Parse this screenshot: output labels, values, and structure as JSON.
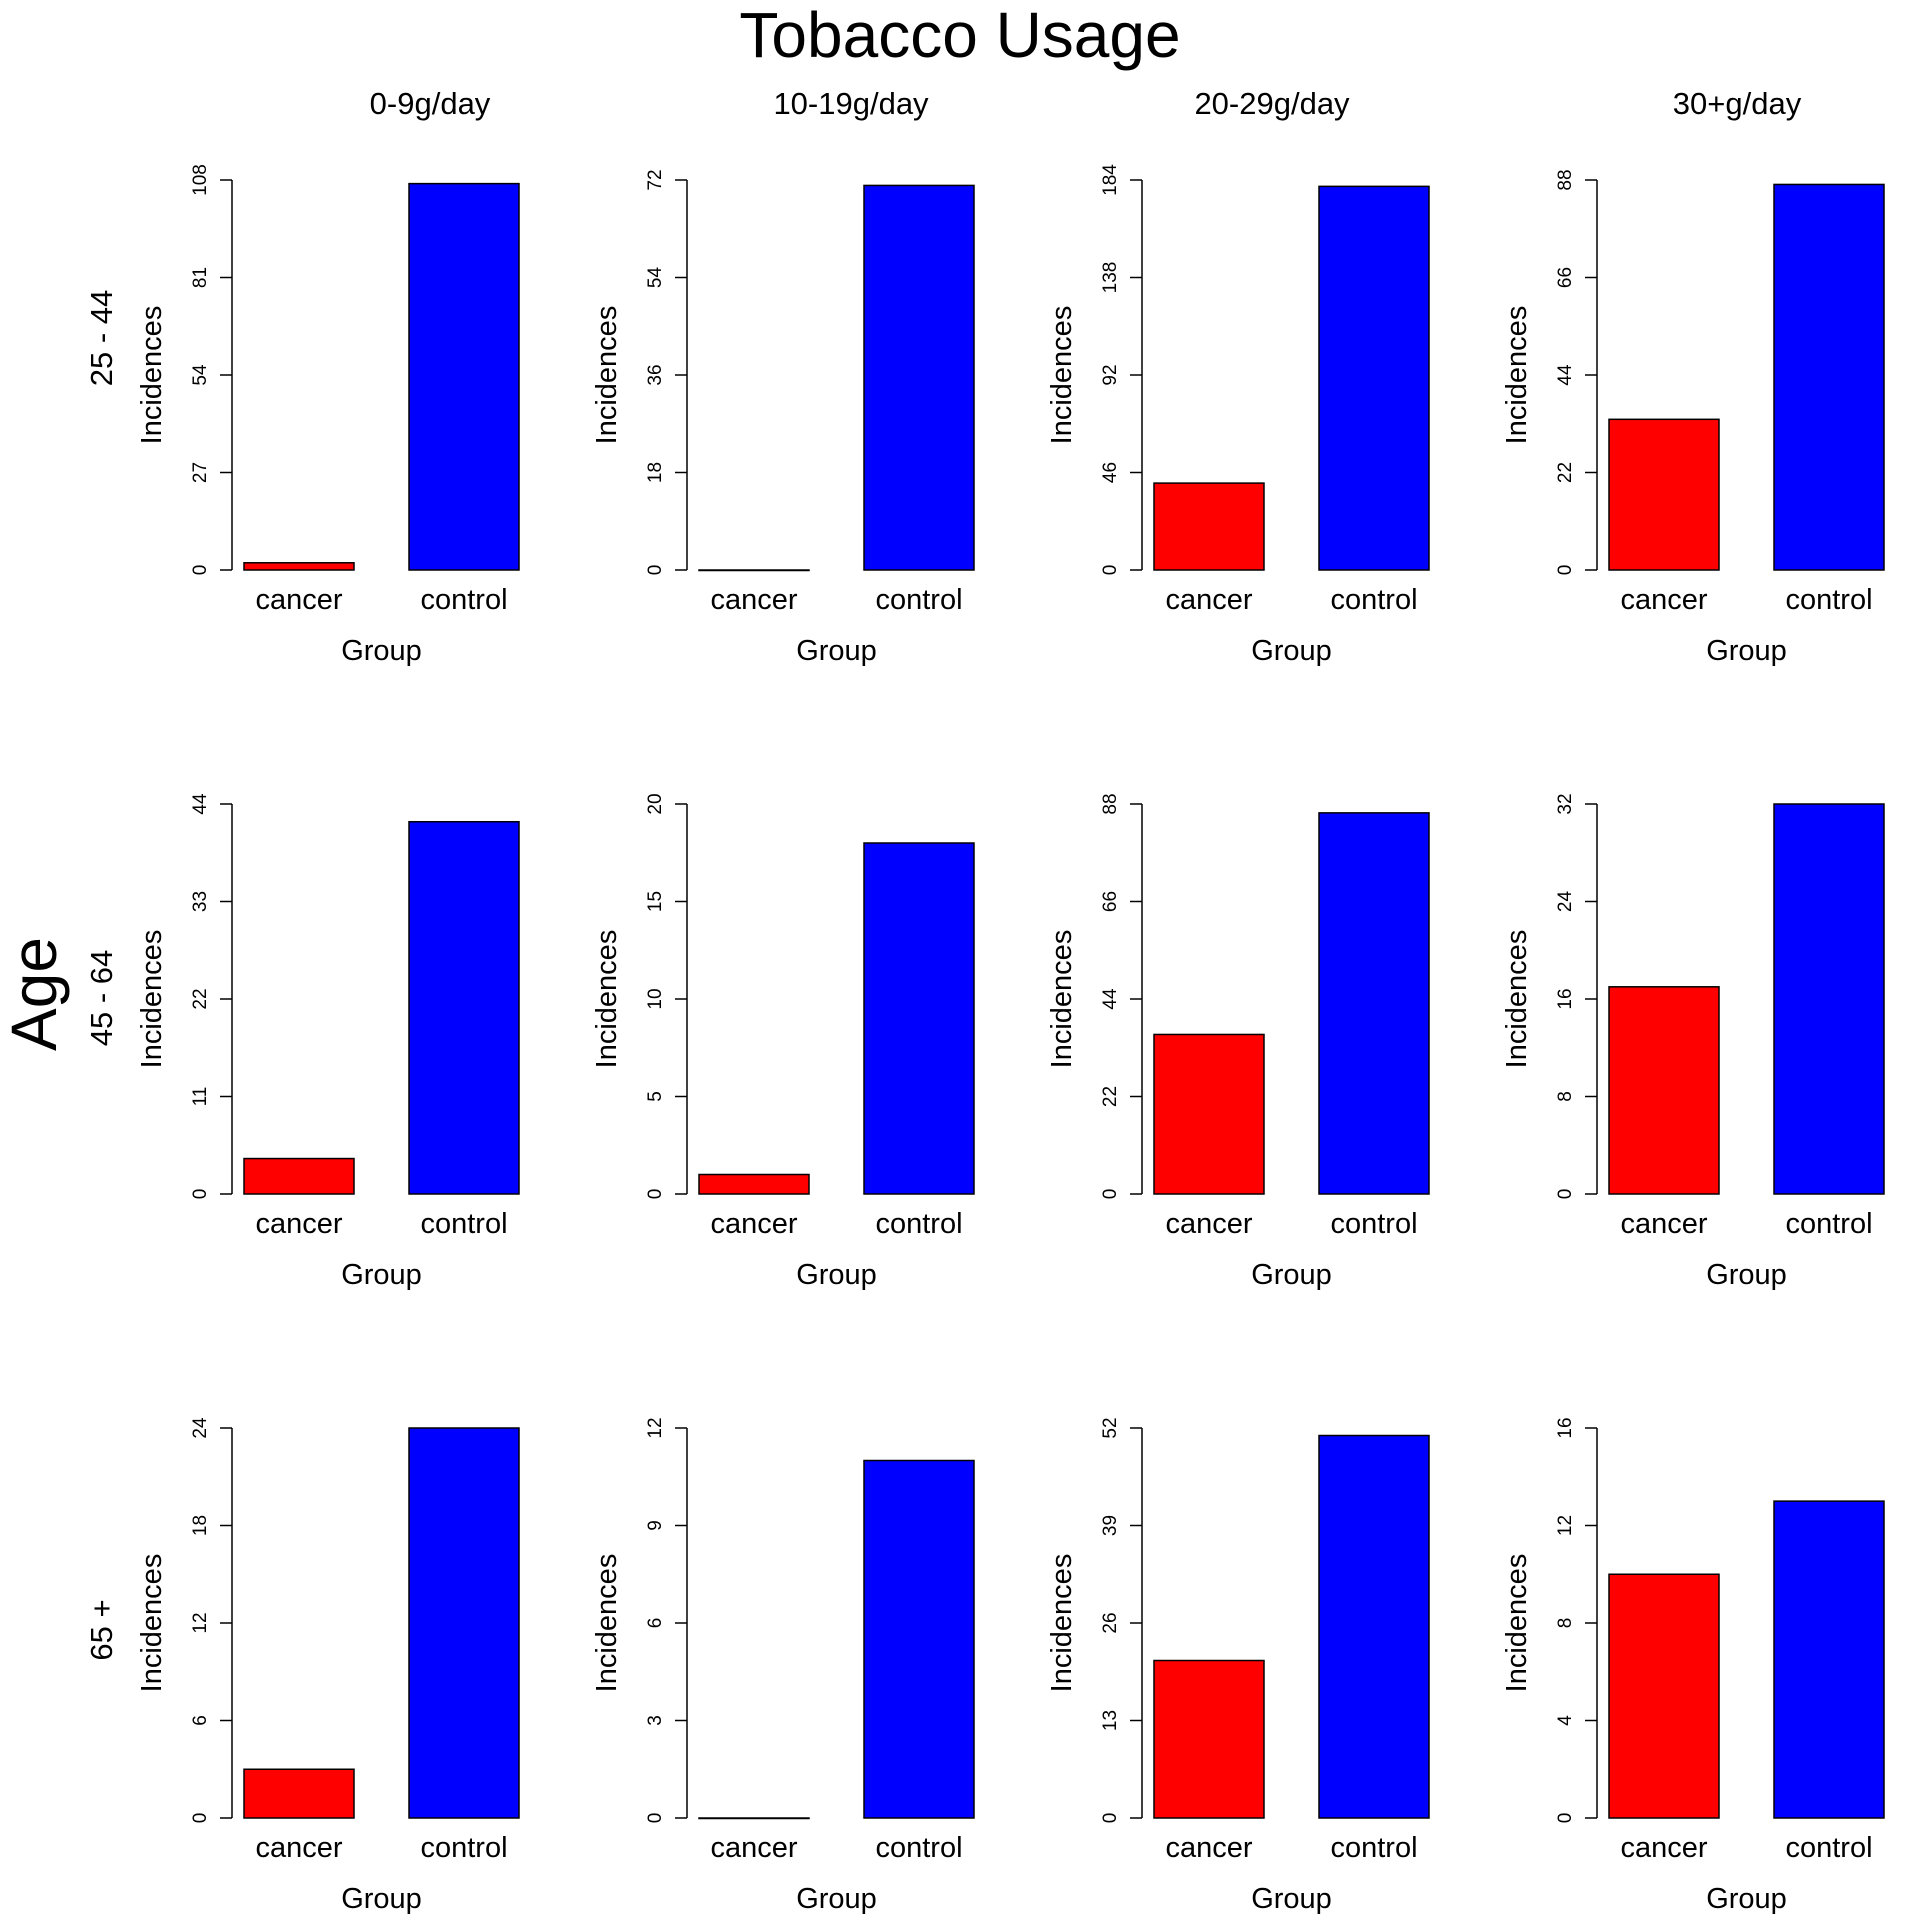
{
  "title": "Tobacco Usage",
  "row_title": "Age",
  "columns": [
    "0-9g/day",
    "10-19g/day",
    "20-29g/day",
    "30+g/day"
  ],
  "rows": [
    "25 - 44",
    "45 - 64",
    "65 +"
  ],
  "colors": {
    "cancer": "#ff0000",
    "control": "#0000ff"
  },
  "chart_data": [
    {
      "type": "bar",
      "age": "25 - 44",
      "tobacco": "0-9g/day",
      "categories": [
        "cancer",
        "control"
      ],
      "values": [
        2,
        107
      ],
      "xlabel": "Group",
      "ylabel": "Incidences",
      "ylim": [
        0,
        108
      ],
      "yticks": [
        0,
        27,
        54,
        81,
        108
      ]
    },
    {
      "type": "bar",
      "age": "25 - 44",
      "tobacco": "10-19g/day",
      "categories": [
        "cancer",
        "control"
      ],
      "values": [
        0,
        71
      ],
      "xlabel": "Group",
      "ylabel": "Incidences",
      "ylim": [
        0,
        72
      ],
      "yticks": [
        0,
        18,
        36,
        54,
        72
      ]
    },
    {
      "type": "bar",
      "age": "25 - 44",
      "tobacco": "20-29g/day",
      "categories": [
        "cancer",
        "control"
      ],
      "values": [
        41,
        181
      ],
      "xlabel": "Group",
      "ylabel": "Incidences",
      "ylim": [
        0,
        184
      ],
      "yticks": [
        0,
        46,
        92,
        138,
        184
      ]
    },
    {
      "type": "bar",
      "age": "25 - 44",
      "tobacco": "30+g/day",
      "categories": [
        "cancer",
        "control"
      ],
      "values": [
        34,
        87
      ],
      "xlabel": "Group",
      "ylabel": "Incidences",
      "ylim": [
        0,
        88
      ],
      "yticks": [
        0,
        22,
        44,
        66,
        88
      ]
    },
    {
      "type": "bar",
      "age": "45 - 64",
      "tobacco": "0-9g/day",
      "categories": [
        "cancer",
        "control"
      ],
      "values": [
        4,
        42
      ],
      "xlabel": "Group",
      "ylabel": "Incidences",
      "ylim": [
        0,
        44
      ],
      "yticks": [
        0,
        11,
        22,
        33,
        44
      ]
    },
    {
      "type": "bar",
      "age": "45 - 64",
      "tobacco": "10-19g/day",
      "categories": [
        "cancer",
        "control"
      ],
      "values": [
        1,
        18
      ],
      "xlabel": "Group",
      "ylabel": "Incidences",
      "ylim": [
        0,
        20
      ],
      "yticks": [
        0,
        5,
        10,
        15,
        20
      ]
    },
    {
      "type": "bar",
      "age": "45 - 64",
      "tobacco": "20-29g/day",
      "categories": [
        "cancer",
        "control"
      ],
      "values": [
        36,
        86
      ],
      "xlabel": "Group",
      "ylabel": "Incidences",
      "ylim": [
        0,
        88
      ],
      "yticks": [
        0,
        22,
        44,
        66,
        88
      ]
    },
    {
      "type": "bar",
      "age": "45 - 64",
      "tobacco": "30+g/day",
      "categories": [
        "cancer",
        "control"
      ],
      "values": [
        17,
        32
      ],
      "xlabel": "Group",
      "ylabel": "Incidences",
      "ylim": [
        0,
        32
      ],
      "yticks": [
        0,
        8,
        16,
        24,
        32
      ]
    },
    {
      "type": "bar",
      "age": "65 +",
      "tobacco": "0-9g/day",
      "categories": [
        "cancer",
        "control"
      ],
      "values": [
        3,
        24
      ],
      "xlabel": "Group",
      "ylabel": "Incidences",
      "ylim": [
        0,
        24
      ],
      "yticks": [
        0,
        6,
        12,
        18,
        24
      ]
    },
    {
      "type": "bar",
      "age": "65 +",
      "tobacco": "10-19g/day",
      "categories": [
        "cancer",
        "control"
      ],
      "values": [
        0,
        11
      ],
      "xlabel": "Group",
      "ylabel": "Incidences",
      "ylim": [
        0,
        12
      ],
      "yticks": [
        0,
        3,
        6,
        9,
        12
      ]
    },
    {
      "type": "bar",
      "age": "65 +",
      "tobacco": "20-29g/day",
      "categories": [
        "cancer",
        "control"
      ],
      "values": [
        21,
        51
      ],
      "xlabel": "Group",
      "ylabel": "Incidences",
      "ylim": [
        0,
        52
      ],
      "yticks": [
        0,
        13,
        26,
        39,
        52
      ]
    },
    {
      "type": "bar",
      "age": "65 +",
      "tobacco": "30+g/day",
      "categories": [
        "cancer",
        "control"
      ],
      "values": [
        10,
        13
      ],
      "xlabel": "Group",
      "ylabel": "Incidences",
      "ylim": [
        0,
        16
      ],
      "yticks": [
        0,
        4,
        8,
        12,
        16
      ]
    }
  ]
}
